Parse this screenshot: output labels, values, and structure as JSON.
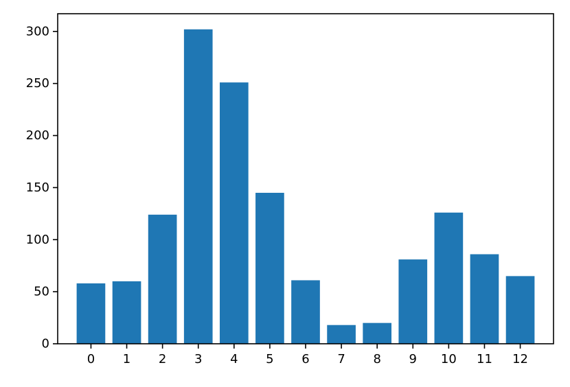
{
  "chart_data": {
    "type": "bar",
    "categories": [
      "0",
      "1",
      "2",
      "3",
      "4",
      "5",
      "6",
      "7",
      "8",
      "9",
      "10",
      "11",
      "12"
    ],
    "values": [
      58,
      60,
      124,
      302,
      251,
      145,
      61,
      18,
      20,
      81,
      126,
      86,
      65
    ],
    "title": "",
    "xlabel": "",
    "ylabel": "",
    "ylim": [
      0,
      317
    ],
    "yticks": [
      0,
      50,
      100,
      150,
      200,
      250,
      300
    ],
    "bar_color": "#1f77b4",
    "grid": false,
    "legend": "none"
  }
}
